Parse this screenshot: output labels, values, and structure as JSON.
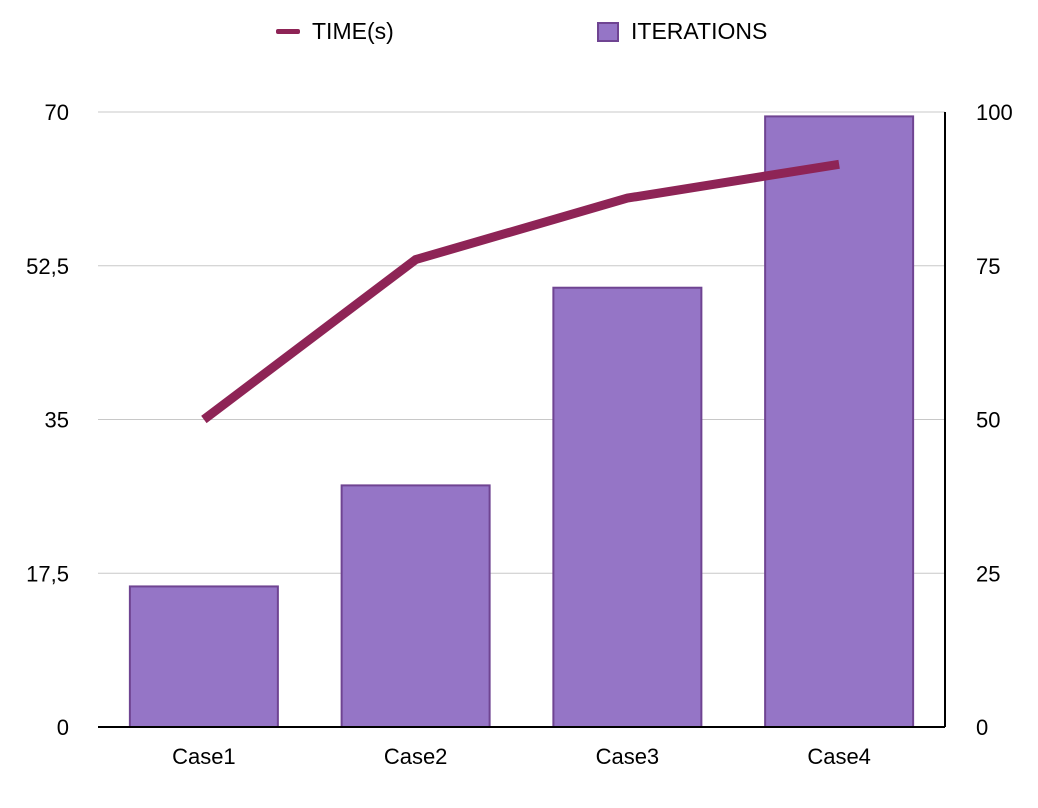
{
  "legend": {
    "time_label": "TIME(s)",
    "iterations_label": "ITERATIONS"
  },
  "colors": {
    "bar_fill": "#9575c6",
    "bar_stroke": "#6f4492",
    "line": "#8e2456",
    "grid": "#c8c8c8",
    "axis": "#000000"
  },
  "chart_data": {
    "type": "bar",
    "categories": [
      "Case1",
      "Case2",
      "Case3",
      "Case4"
    ],
    "series": [
      {
        "name": "ITERATIONS",
        "type": "bar",
        "axis": "left",
        "values": [
          16,
          27.5,
          50,
          69.5
        ]
      },
      {
        "name": "TIME(s)",
        "type": "line",
        "axis": "right",
        "values": [
          50,
          76,
          86,
          91.5
        ]
      }
    ],
    "y_left": {
      "ticks": [
        "0",
        "17,5",
        "35",
        "52,5",
        "70"
      ],
      "tick_values": [
        0,
        17.5,
        35,
        52.5,
        70
      ],
      "ylim": [
        0,
        70
      ]
    },
    "y_right": {
      "ticks": [
        "0",
        "25",
        "50",
        "75",
        "100"
      ],
      "tick_values": [
        0,
        25,
        50,
        75,
        100
      ],
      "ylim": [
        0,
        100
      ]
    },
    "grid": true,
    "legend_position": "top"
  }
}
